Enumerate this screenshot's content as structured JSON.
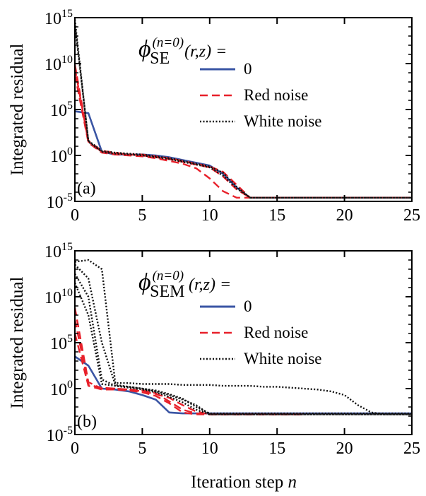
{
  "figure": {
    "xlabel_prefix": "Iteration step ",
    "xlabel_var": "n"
  },
  "chart_data": [
    {
      "type": "line",
      "panel_label": "(a)",
      "ylabel": "Integrated residual",
      "yscale": "log",
      "xlim": [
        0,
        25
      ],
      "ylim_exp": [
        -5,
        15
      ],
      "xticks": [
        0,
        5,
        10,
        15,
        20,
        25
      ],
      "yticks_exp": [
        -5,
        0,
        5,
        10,
        15
      ],
      "y_base": "10",
      "legend_title": {
        "symbol": "ϕ",
        "superscript": "(n=0)",
        "subscript": "SE",
        "args": "(r,z) ="
      },
      "legend": [
        "0",
        "Red noise",
        "White noise"
      ],
      "legend_position": "upper-right",
      "series": [
        {
          "name": "0",
          "color": "#3a55a4",
          "dash": "solid",
          "lines": [
            {
              "x": [
                0,
                1,
                2,
                3,
                4,
                5,
                6,
                7,
                8,
                9,
                10,
                11,
                12,
                13,
                25
              ],
              "y_exp": [
                4.8,
                4.6,
                0.4,
                0.1,
                0.1,
                0.1,
                0.0,
                -0.2,
                -0.5,
                -0.8,
                -1.1,
                -2.0,
                -3.5,
                -4.6,
                -4.6
              ]
            }
          ]
        },
        {
          "name": "Red noise",
          "color": "#e8202a",
          "dash": "dashed",
          "lines": [
            {
              "x": [
                0,
                1,
                2,
                3,
                4,
                5,
                6,
                7,
                8,
                9,
                10,
                11,
                12,
                13,
                25
              ],
              "y_exp": [
                9.5,
                1.5,
                0.4,
                0.2,
                0.1,
                0.0,
                -0.2,
                -0.4,
                -0.7,
                -1.0,
                -1.3,
                -2.3,
                -3.7,
                -4.6,
                -4.6
              ]
            },
            {
              "x": [
                0,
                1,
                2,
                3,
                4,
                5,
                6,
                7,
                8,
                9,
                10,
                11,
                12,
                25
              ],
              "y_exp": [
                8.8,
                1.4,
                0.3,
                0.1,
                0.0,
                -0.1,
                -0.3,
                -0.6,
                -0.9,
                -1.4,
                -2.5,
                -3.9,
                -4.6,
                -4.6
              ]
            },
            {
              "x": [
                0,
                1,
                2,
                3,
                4,
                5,
                6,
                7,
                8,
                9,
                10,
                11,
                12,
                13,
                25
              ],
              "y_exp": [
                9.9,
                1.6,
                0.5,
                0.3,
                0.1,
                0.1,
                -0.1,
                -0.3,
                -0.6,
                -0.9,
                -1.2,
                -1.8,
                -3.2,
                -4.6,
                -4.6
              ]
            }
          ]
        },
        {
          "name": "White noise",
          "color": "#111111",
          "dash": "dotted",
          "lines": [
            {
              "x": [
                0,
                1,
                2,
                3,
                4,
                5,
                6,
                7,
                8,
                9,
                10,
                11,
                12,
                13,
                25
              ],
              "y_exp": [
                14.8,
                1.5,
                0.4,
                0.2,
                0.1,
                0.0,
                -0.2,
                -0.4,
                -0.7,
                -1.0,
                -1.3,
                -2.2,
                -3.6,
                -4.6,
                -4.6
              ]
            },
            {
              "x": [
                0,
                1,
                2,
                3,
                4,
                5,
                6,
                7,
                8,
                9,
                10,
                11,
                12,
                13,
                25
              ],
              "y_exp": [
                14.3,
                1.6,
                0.5,
                0.3,
                0.2,
                0.1,
                -0.1,
                -0.3,
                -0.6,
                -0.9,
                -1.2,
                -1.9,
                -3.4,
                -4.6,
                -4.6
              ]
            }
          ]
        }
      ]
    },
    {
      "type": "line",
      "panel_label": "(b)",
      "ylabel": "Integrated residual",
      "yscale": "log",
      "xlim": [
        0,
        25
      ],
      "ylim_exp": [
        -5,
        15
      ],
      "xticks": [
        0,
        5,
        10,
        15,
        20,
        25
      ],
      "yticks_exp": [
        -5,
        0,
        5,
        10,
        15
      ],
      "y_base": "10",
      "legend_title": {
        "symbol": "ϕ",
        "superscript": "(n=0)",
        "subscript": "SEM",
        "args": "(r,z) ="
      },
      "legend": [
        "0",
        "Red noise",
        "White noise"
      ],
      "legend_position": "upper-right",
      "series": [
        {
          "name": "0",
          "color": "#3a55a4",
          "dash": "solid",
          "lines": [
            {
              "x": [
                0,
                1,
                2,
                3,
                4,
                5,
                6,
                7,
                8,
                9,
                10,
                25
              ],
              "y_exp": [
                3.5,
                2.5,
                0.0,
                -0.1,
                -0.3,
                -0.7,
                -1.2,
                -2.6,
                -2.7,
                -2.7,
                -2.7,
                -2.7
              ]
            }
          ]
        },
        {
          "name": "Red noise",
          "color": "#e8202a",
          "dash": "dashed",
          "lines": [
            {
              "x": [
                0,
                1,
                2,
                3,
                4,
                5,
                6,
                7,
                8,
                9,
                10,
                17
              ],
              "y_exp": [
                8.8,
                0.7,
                0.0,
                0.0,
                -0.1,
                -0.3,
                -0.6,
                -1.0,
                -1.8,
                -2.5,
                -2.8,
                -2.8
              ]
            },
            {
              "x": [
                0,
                1,
                2,
                3,
                4,
                5,
                6,
                7,
                8,
                9,
                10,
                17
              ],
              "y_exp": [
                7.5,
                0.4,
                0.1,
                0.0,
                -0.1,
                -0.2,
                -0.5,
                -1.4,
                -2.3,
                -2.7,
                -2.8,
                -2.8
              ]
            },
            {
              "x": [
                0,
                1,
                2,
                3,
                4,
                5,
                6,
                7,
                8,
                9,
                10,
                17
              ],
              "y_exp": [
                6.0,
                0.3,
                -0.1,
                -0.1,
                -0.2,
                -0.4,
                -0.8,
                -1.6,
                -2.6,
                -2.8,
                -2.8,
                -2.8
              ]
            }
          ]
        },
        {
          "name": "White noise",
          "color": "#111111",
          "dash": "dotted",
          "lines": [
            {
              "x": [
                0,
                1,
                2,
                3,
                4,
                5,
                6,
                7,
                8,
                9,
                10,
                11,
                12,
                13,
                14,
                15,
                16,
                17,
                18,
                19,
                20,
                21,
                22,
                23,
                25
              ],
              "y_exp": [
                13.8,
                14.0,
                13.0,
                0.6,
                0.6,
                0.5,
                0.5,
                0.5,
                0.4,
                0.4,
                0.4,
                0.3,
                0.3,
                0.3,
                0.2,
                0.2,
                0.1,
                0.0,
                -0.1,
                -0.3,
                -0.7,
                -1.8,
                -2.6,
                -2.8,
                -2.8
              ]
            },
            {
              "x": [
                0,
                1,
                2,
                3,
                4,
                5,
                6,
                7,
                8,
                9,
                10,
                25
              ],
              "y_exp": [
                13.5,
                12.0,
                5.0,
                0.4,
                0.2,
                0.0,
                -0.3,
                -0.7,
                -1.2,
                -1.8,
                -2.8,
                -2.8
              ]
            },
            {
              "x": [
                0,
                1,
                2,
                3,
                4,
                5,
                6,
                7,
                8,
                9,
                10,
                25
              ],
              "y_exp": [
                11.5,
                8.0,
                0.5,
                0.3,
                0.1,
                -0.1,
                -0.4,
                -0.9,
                -1.5,
                -2.3,
                -2.8,
                -2.8
              ]
            },
            {
              "x": [
                0,
                1,
                2,
                3,
                4,
                5,
                6,
                7,
                8,
                9,
                10,
                25
              ],
              "y_exp": [
                12.5,
                10.0,
                1.0,
                0.3,
                0.2,
                0.0,
                -0.2,
                -0.6,
                -1.1,
                -2.0,
                -2.7,
                -2.7
              ]
            }
          ]
        }
      ]
    }
  ]
}
